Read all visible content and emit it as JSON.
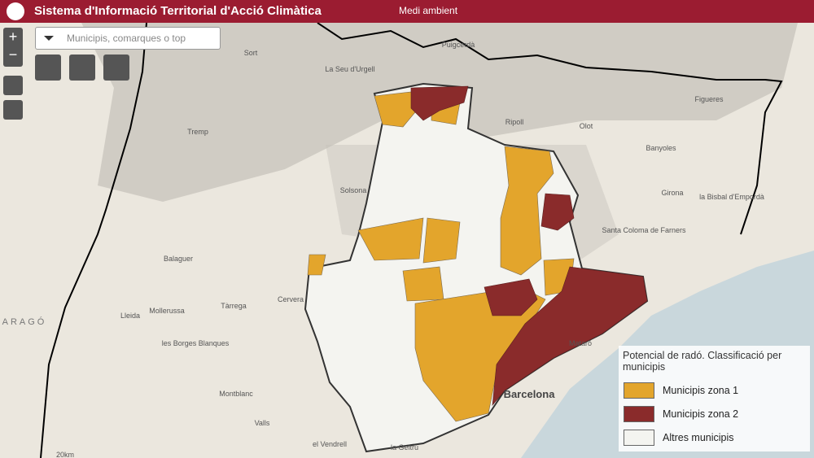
{
  "header": {
    "title": "Sistema d'Informació Territorial d'Acció Climàtica",
    "section": "Medi ambient"
  },
  "search": {
    "placeholder": "Municipis, comarques o top"
  },
  "legend": {
    "title": "Potencial de radó. Classificació per municipis",
    "items": [
      {
        "label": "Municipis zona 1",
        "color": "#e3a52c"
      },
      {
        "label": "Municipis zona 2",
        "color": "#8a2b2b"
      },
      {
        "label": "Altres municipis",
        "color": "#f4f4f0"
      }
    ]
  },
  "places": [
    {
      "label": "Sort"
    },
    {
      "label": "Puigcerdà"
    },
    {
      "label": "La Seu d'Urgell"
    },
    {
      "label": "Tremp"
    },
    {
      "label": "Ripoll"
    },
    {
      "label": "Olot"
    },
    {
      "label": "Figueres"
    },
    {
      "label": "Banyoles"
    },
    {
      "label": "Solsona"
    },
    {
      "label": "Girona"
    },
    {
      "label": "la Bisbal d'Empordà"
    },
    {
      "label": "Santa Coloma de Farners"
    },
    {
      "label": "Balaguer"
    },
    {
      "label": "Lleida"
    },
    {
      "label": "Mollerussa"
    },
    {
      "label": "Tàrrega"
    },
    {
      "label": "Cervera"
    },
    {
      "label": "les Borges Blanques"
    },
    {
      "label": "Montblanc"
    },
    {
      "label": "Valls"
    },
    {
      "label": "el Vendrell"
    },
    {
      "label": "la Geltrú"
    },
    {
      "label": "Barcelona"
    },
    {
      "label": "Mataró"
    },
    {
      "label": "ARAGÓ"
    },
    {
      "label": "20km"
    }
  ]
}
